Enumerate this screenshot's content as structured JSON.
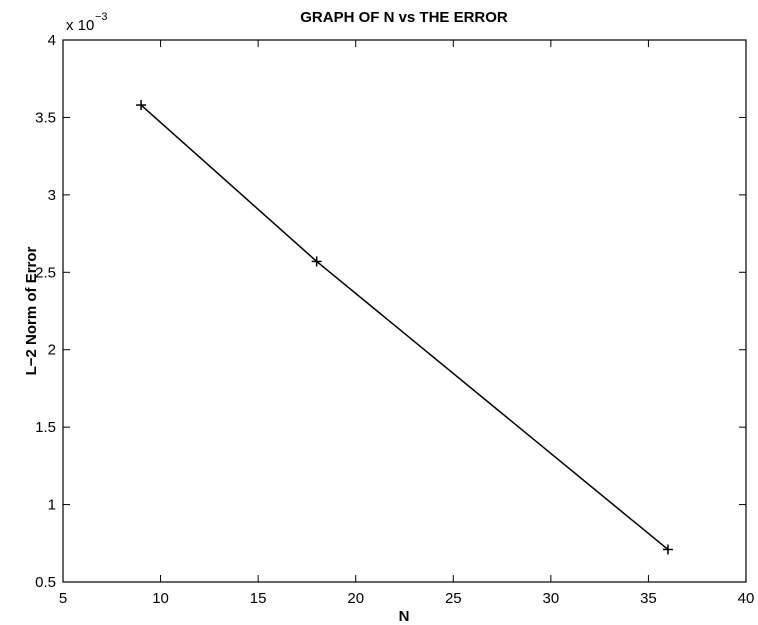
{
  "chart_data": {
    "type": "line",
    "title": "GRAPH OF N vs THE ERROR",
    "xlabel": "N",
    "ylabel": "L−2 Norm of Error",
    "y_exponent_label": "x 10",
    "y_exponent_power": "−3",
    "xlim": [
      5,
      40
    ],
    "ylim": [
      0.5,
      4
    ],
    "x_ticks": [
      5,
      10,
      15,
      20,
      25,
      30,
      35,
      40
    ],
    "x_tick_labels": [
      "5",
      "10",
      "15",
      "20",
      "25",
      "30",
      "35",
      "40"
    ],
    "y_ticks": [
      0.5,
      1,
      1.5,
      2,
      2.5,
      3,
      3.5,
      4
    ],
    "y_tick_labels": [
      "0.5",
      "1",
      "1.5",
      "2",
      "2.5",
      "3",
      "3.5",
      "4"
    ],
    "grid": false,
    "series": [
      {
        "x": [
          9,
          18,
          36
        ],
        "y": [
          3.58,
          2.57,
          0.71
        ],
        "marker": "+",
        "color": "#000000"
      }
    ]
  }
}
